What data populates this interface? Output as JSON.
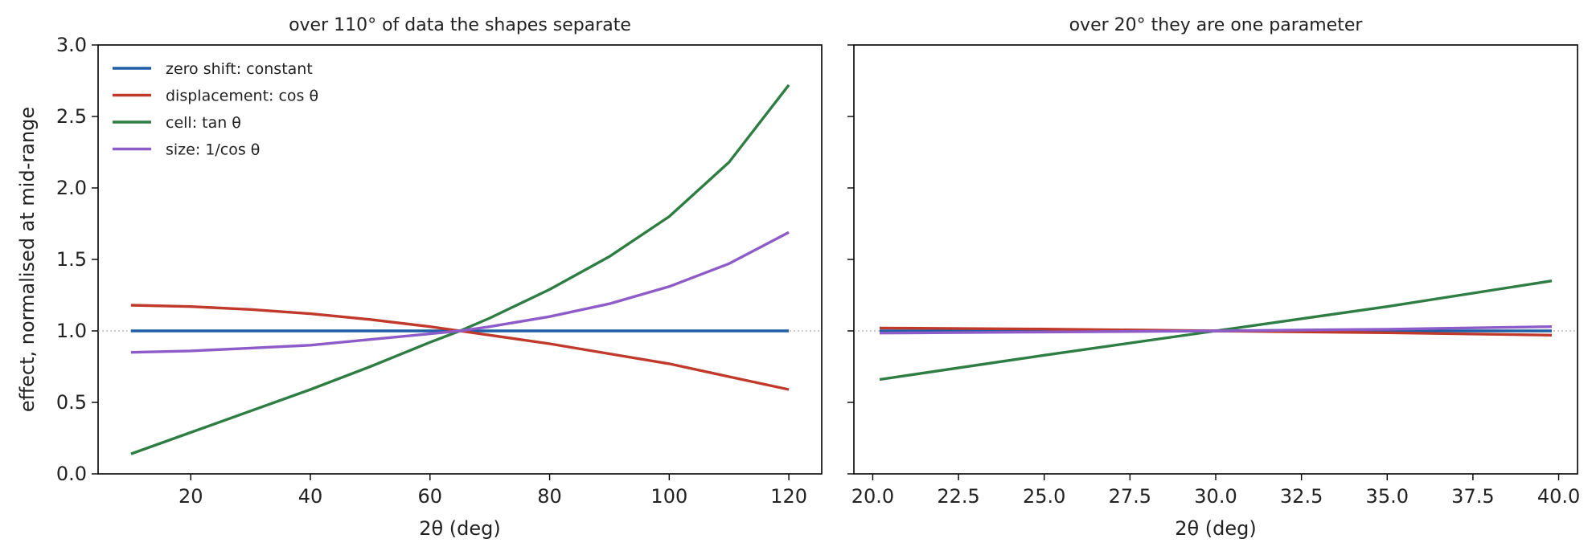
{
  "chart_data": [
    {
      "type": "line",
      "title": "over 110° of data the shapes separate",
      "xlabel": "2θ (deg)",
      "ylabel": "effect, normalised at mid-range",
      "xlim": [
        4.5,
        125.5
      ],
      "ylim": [
        0,
        3
      ],
      "xticks": [
        20,
        40,
        60,
        80,
        100,
        120
      ],
      "xtick_labels": [
        "20",
        "40",
        "60",
        "80",
        "100",
        "120"
      ],
      "yticks": [
        0,
        0.5,
        1,
        1.5,
        2,
        2.5,
        3
      ],
      "ytick_labels": [
        "0.0",
        "0.5",
        "1.0",
        "1.5",
        "2.0",
        "2.5",
        "3.0"
      ],
      "reference_line": 1.0,
      "grid": false,
      "legend_position": "upper-left",
      "x": [
        10,
        20,
        30,
        40,
        50,
        60,
        65,
        70,
        80,
        90,
        100,
        110,
        120
      ],
      "series": [
        {
          "name": "zero shift: constant",
          "color": "#1f5fa6",
          "values": [
            1,
            1,
            1,
            1,
            1,
            1,
            1,
            1,
            1,
            1,
            1,
            1,
            1
          ]
        },
        {
          "name": "displacement: cos θ",
          "color": "#c0392b",
          "values": [
            1.18,
            1.17,
            1.15,
            1.12,
            1.08,
            1.03,
            1.0,
            0.97,
            0.91,
            0.84,
            0.77,
            0.68,
            0.59
          ]
        },
        {
          "name": "cell: tan θ",
          "color": "#2e7d43",
          "values": [
            0.14,
            0.29,
            0.44,
            0.59,
            0.75,
            0.92,
            1.0,
            1.09,
            1.29,
            1.52,
            1.8,
            2.18,
            2.72
          ]
        },
        {
          "name": "size: 1/cos θ",
          "color": "#8e5cc8",
          "values": [
            0.85,
            0.86,
            0.88,
            0.9,
            0.94,
            0.98,
            1.0,
            1.03,
            1.1,
            1.19,
            1.31,
            1.47,
            1.69
          ]
        }
      ]
    },
    {
      "type": "line",
      "title": "over 20° they are one parameter",
      "xlabel": "2θ (deg)",
      "xlim": [
        19.45,
        40.55
      ],
      "ylim": [
        0,
        3
      ],
      "xticks": [
        20,
        22.5,
        25,
        27.5,
        30,
        32.5,
        35,
        37.5,
        40
      ],
      "xtick_labels": [
        "20.0",
        "22.5",
        "25.0",
        "27.5",
        "30.0",
        "32.5",
        "35.0",
        "37.5",
        "40.0"
      ],
      "shared_y": true,
      "reference_line": 1.0,
      "grid": false,
      "x": [
        20.2,
        25,
        30,
        35,
        39.8
      ],
      "series": [
        {
          "name": "zero shift: constant",
          "color": "#1f5fa6",
          "values": [
            1,
            1,
            1,
            1,
            1
          ]
        },
        {
          "name": "displacement: cos θ",
          "color": "#c0392b",
          "values": [
            1.02,
            1.013,
            1.0,
            0.987,
            0.97
          ]
        },
        {
          "name": "cell: tan θ",
          "color": "#2e7d43",
          "values": [
            0.66,
            0.83,
            1.0,
            1.17,
            1.35
          ]
        },
        {
          "name": "size: 1/cos θ",
          "color": "#8e5cc8",
          "values": [
            0.985,
            0.992,
            1.0,
            1.012,
            1.03
          ]
        }
      ]
    }
  ]
}
